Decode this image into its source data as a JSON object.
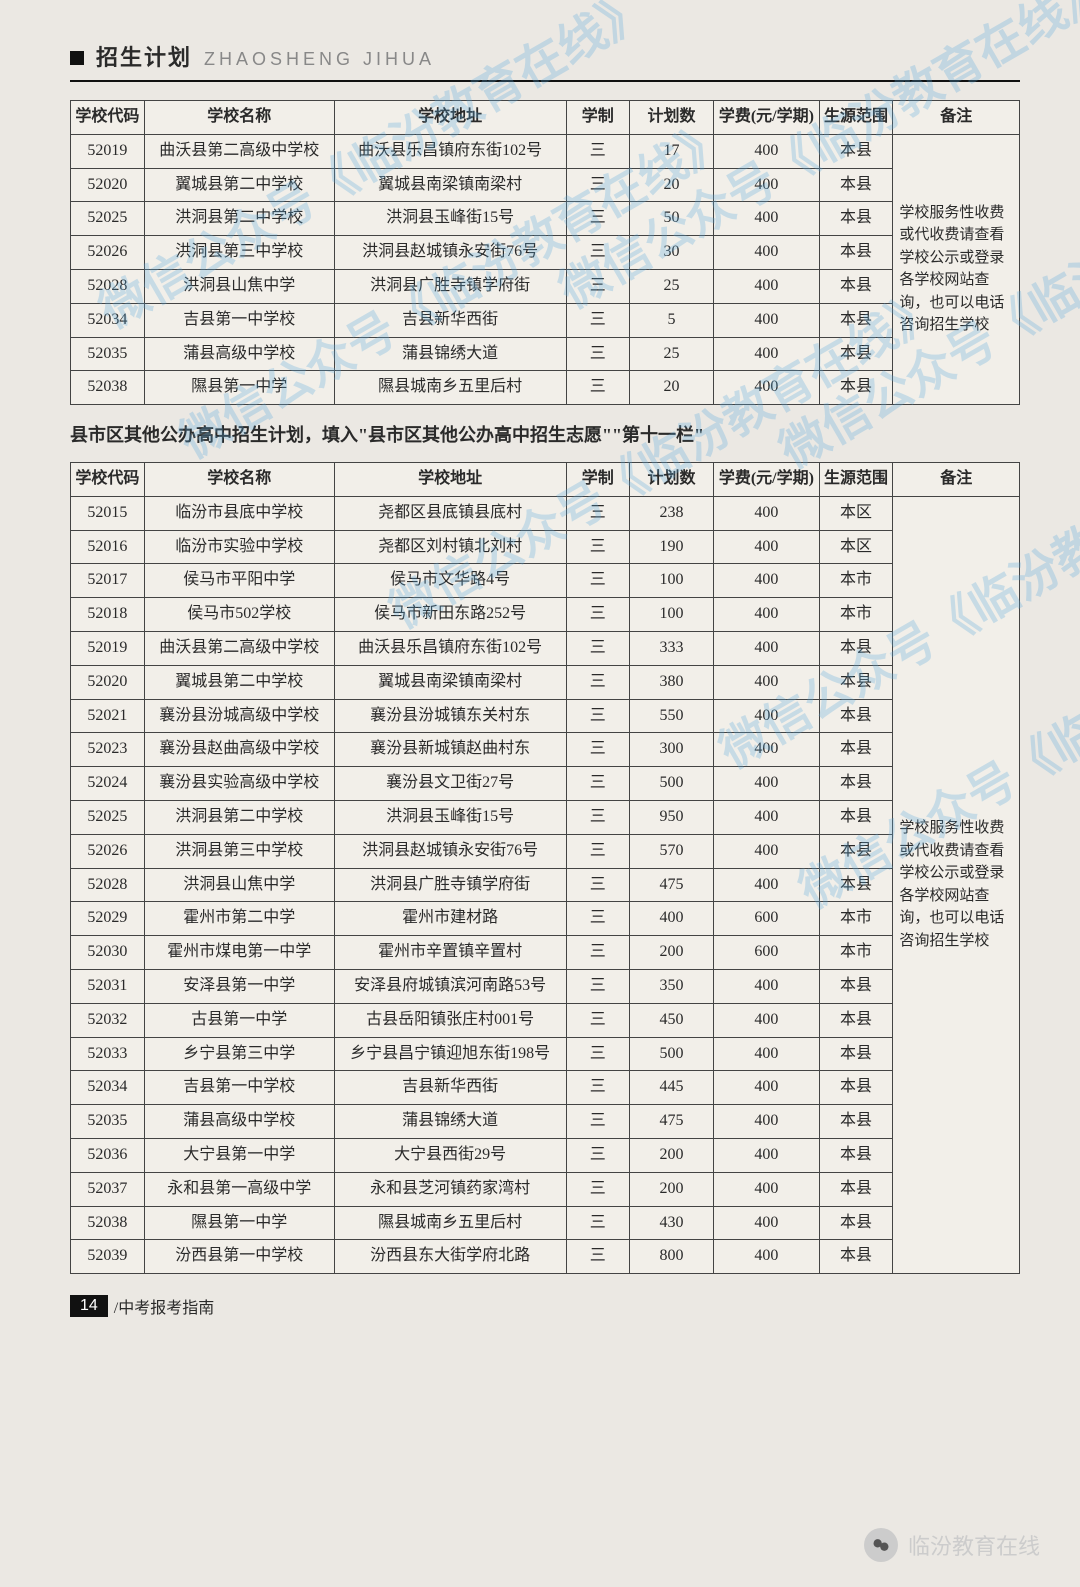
{
  "header": {
    "title_cn": "招生计划",
    "title_py": "ZHAOSHENG JIHUA"
  },
  "table1": {
    "columns": [
      "学校代码",
      "学校名称",
      "学校地址",
      "学制",
      "计划数",
      "学费(元/学期)",
      "生源范围",
      "备注"
    ],
    "note": "学校服务性收费或代收费请查看学校公示或登录各学校网站查询，也可以电话咨询招生学校",
    "rows": [
      [
        "52019",
        "曲沃县第二高级中学校",
        "曲沃县乐昌镇府东街102号",
        "三",
        "17",
        "400",
        "本县"
      ],
      [
        "52020",
        "翼城县第二中学校",
        "翼城县南梁镇南梁村",
        "三",
        "20",
        "400",
        "本县"
      ],
      [
        "52025",
        "洪洞县第二中学校",
        "洪洞县玉峰街15号",
        "三",
        "50",
        "400",
        "本县"
      ],
      [
        "52026",
        "洪洞县第三中学校",
        "洪洞县赵城镇永安街76号",
        "三",
        "30",
        "400",
        "本县"
      ],
      [
        "52028",
        "洪洞县山焦中学",
        "洪洞县广胜寺镇学府街",
        "三",
        "25",
        "400",
        "本县"
      ],
      [
        "52034",
        "吉县第一中学校",
        "吉县新华西街",
        "三",
        "5",
        "400",
        "本县"
      ],
      [
        "52035",
        "蒲县高级中学校",
        "蒲县锦绣大道",
        "三",
        "25",
        "400",
        "本县"
      ],
      [
        "52038",
        "隰县第一中学",
        "隰县城南乡五里后村",
        "三",
        "20",
        "400",
        "本县"
      ]
    ]
  },
  "subtitle": "县市区其他公办高中招生计划，填入\"县市区其他公办高中招生志愿\"\"第十一栏\"",
  "table2": {
    "columns": [
      "学校代码",
      "学校名称",
      "学校地址",
      "学制",
      "计划数",
      "学费(元/学期)",
      "生源范围",
      "备注"
    ],
    "note": "学校服务性收费或代收费请查看学校公示或登录各学校网站查询，也可以电话咨询招生学校",
    "rows": [
      [
        "52015",
        "临汾市县底中学校",
        "尧都区县底镇县底村",
        "三",
        "238",
        "400",
        "本区"
      ],
      [
        "52016",
        "临汾市实验中学校",
        "尧都区刘村镇北刘村",
        "三",
        "190",
        "400",
        "本区"
      ],
      [
        "52017",
        "侯马市平阳中学",
        "侯马市文华路4号",
        "三",
        "100",
        "400",
        "本市"
      ],
      [
        "52018",
        "侯马市502学校",
        "侯马市新田东路252号",
        "三",
        "100",
        "400",
        "本市"
      ],
      [
        "52019",
        "曲沃县第二高级中学校",
        "曲沃县乐昌镇府东街102号",
        "三",
        "333",
        "400",
        "本县"
      ],
      [
        "52020",
        "翼城县第二中学校",
        "翼城县南梁镇南梁村",
        "三",
        "380",
        "400",
        "本县"
      ],
      [
        "52021",
        "襄汾县汾城高级中学校",
        "襄汾县汾城镇东关村东",
        "三",
        "550",
        "400",
        "本县"
      ],
      [
        "52023",
        "襄汾县赵曲高级中学校",
        "襄汾县新城镇赵曲村东",
        "三",
        "300",
        "400",
        "本县"
      ],
      [
        "52024",
        "襄汾县实验高级中学校",
        "襄汾县文卫街27号",
        "三",
        "500",
        "400",
        "本县"
      ],
      [
        "52025",
        "洪洞县第二中学校",
        "洪洞县玉峰街15号",
        "三",
        "950",
        "400",
        "本县"
      ],
      [
        "52026",
        "洪洞县第三中学校",
        "洪洞县赵城镇永安街76号",
        "三",
        "570",
        "400",
        "本县"
      ],
      [
        "52028",
        "洪洞县山焦中学",
        "洪洞县广胜寺镇学府街",
        "三",
        "475",
        "400",
        "本县"
      ],
      [
        "52029",
        "霍州市第二中学",
        "霍州市建材路",
        "三",
        "400",
        "600",
        "本市"
      ],
      [
        "52030",
        "霍州市煤电第一中学",
        "霍州市辛置镇辛置村",
        "三",
        "200",
        "600",
        "本市"
      ],
      [
        "52031",
        "安泽县第一中学",
        "安泽县府城镇滨河南路53号",
        "三",
        "350",
        "400",
        "本县"
      ],
      [
        "52032",
        "古县第一中学",
        "古县岳阳镇张庄村001号",
        "三",
        "450",
        "400",
        "本县"
      ],
      [
        "52033",
        "乡宁县第三中学",
        "乡宁县昌宁镇迎旭东街198号",
        "三",
        "500",
        "400",
        "本县"
      ],
      [
        "52034",
        "吉县第一中学校",
        "吉县新华西街",
        "三",
        "445",
        "400",
        "本县"
      ],
      [
        "52035",
        "蒲县高级中学校",
        "蒲县锦绣大道",
        "三",
        "475",
        "400",
        "本县"
      ],
      [
        "52036",
        "大宁县第一中学",
        "大宁县西街29号",
        "三",
        "200",
        "400",
        "本县"
      ],
      [
        "52037",
        "永和县第一高级中学",
        "永和县芝河镇药家湾村",
        "三",
        "200",
        "400",
        "本县"
      ],
      [
        "52038",
        "隰县第一中学",
        "隰县城南乡五里后村",
        "三",
        "430",
        "400",
        "本县"
      ],
      [
        "52039",
        "汾西县第一中学校",
        "汾西县东大街学府北路",
        "三",
        "800",
        "400",
        "本县"
      ]
    ]
  },
  "footer": {
    "page_num": "14",
    "page_title": "/中考报考指南",
    "brand": "临汾教育在线"
  },
  "watermark_text": "微信公众号《临汾教育在线》",
  "colors": {
    "page_bg": "#ebe8e3",
    "text": "#2a2a2a",
    "border": "#444444",
    "watermark": "rgba(90,170,220,0.28)",
    "footer_brand": "#cccccc"
  }
}
